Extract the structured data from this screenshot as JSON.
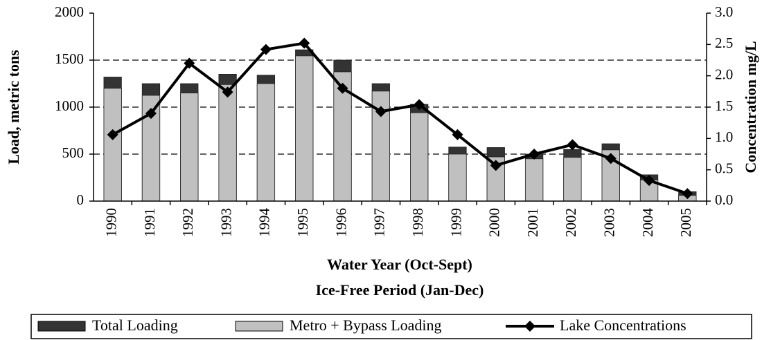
{
  "chart_data": {
    "type": "bar",
    "categories": [
      "1990",
      "1991",
      "1992",
      "1993",
      "1994",
      "1995",
      "1996",
      "1997",
      "1998",
      "1999",
      "2000",
      "2001",
      "2002",
      "2003",
      "2004",
      "2005"
    ],
    "series": [
      {
        "name": "Total Loading",
        "color": "#333333",
        "values": [
          1320,
          1250,
          1250,
          1350,
          1340,
          1610,
          1500,
          1250,
          1030,
          575,
          570,
          500,
          550,
          610,
          280,
          100
        ]
      },
      {
        "name": "Metro + Bypass Loading",
        "color": "#c0c0c0",
        "values": [
          1200,
          1125,
          1150,
          1240,
          1250,
          1545,
          1375,
          1170,
          940,
          500,
          470,
          450,
          465,
          545,
          225,
          60
        ]
      },
      {
        "name": "Lake Concentrations",
        "color": "#000000",
        "type": "line",
        "axis": "y2",
        "values": [
          1.06,
          1.4,
          2.2,
          1.74,
          2.42,
          2.52,
          1.8,
          1.43,
          1.54,
          1.06,
          0.57,
          0.75,
          0.9,
          0.68,
          0.33,
          0.12
        ]
      }
    ],
    "y_label": "Load, metric tons",
    "y2_label": "Concentration mg/L",
    "x_label": [
      "Water Year (Oct-Sept)",
      "Ice-Free Period (Jan-Dec)"
    ],
    "ylim": [
      0,
      2000
    ],
    "yticks": [
      0,
      500,
      1000,
      1500,
      2000
    ],
    "y2lim": [
      0,
      3
    ],
    "y2ticks": [
      {
        "value": 0,
        "label": "0.0"
      },
      0.5,
      {
        "value": 1,
        "label": "1.0"
      },
      1.5,
      {
        "value": 2,
        "label": "2.0"
      },
      2.5,
      {
        "value": 3,
        "label": "3.0"
      }
    ],
    "grid": true,
    "legend": "bottom"
  }
}
